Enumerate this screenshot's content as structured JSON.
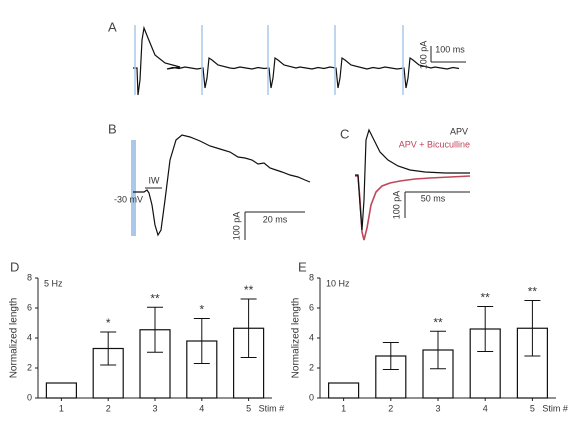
{
  "panel_a": {
    "label": "A",
    "scale_y": "100 pA",
    "scale_x": "100 ms"
  },
  "panel_b": {
    "label": "B",
    "voltage": "-30 mV",
    "marker": "IW",
    "scale_y": "100 pA",
    "scale_x": "20 ms"
  },
  "panel_c": {
    "label": "C",
    "legend": [
      "APV",
      "APV + Bicuculline"
    ],
    "scale_y": "100 pA",
    "scale_x": "50 ms"
  },
  "chart_data": [
    {
      "type": "bar",
      "label": "D",
      "title": "5 Hz",
      "y_label": "Normalized length",
      "x_label": "Stim #",
      "categories": [
        "1",
        "2",
        "3",
        "4",
        "5"
      ],
      "values": [
        1,
        3.3,
        4.55,
        3.8,
        4.65
      ],
      "errors": [
        null,
        1.1,
        1.5,
        1.5,
        1.95
      ],
      "annotations": [
        null,
        "*",
        "**",
        "*",
        "**"
      ],
      "color": "#ffffff",
      "ylim": [
        0,
        8
      ],
      "yticks": [
        0,
        2,
        4,
        6,
        8
      ]
    },
    {
      "type": "bar",
      "label": "E",
      "title": "10 Hz",
      "y_label": "Normalized length",
      "x_label": "Stim #",
      "categories": [
        "1",
        "2",
        "3",
        "4",
        "5"
      ],
      "values": [
        1,
        2.8,
        3.2,
        4.6,
        4.65
      ],
      "errors": [
        null,
        0.9,
        1.25,
        1.5,
        1.85
      ],
      "annotations": [
        null,
        null,
        "**",
        "**",
        "**"
      ],
      "color": "#ffffff",
      "ylim": [
        0,
        8
      ],
      "yticks": [
        0,
        2,
        4,
        6,
        8
      ]
    }
  ]
}
